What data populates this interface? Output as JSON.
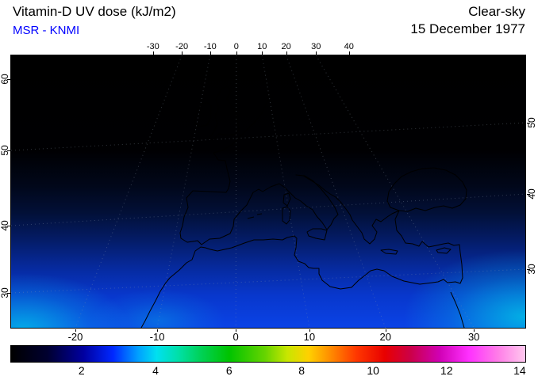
{
  "header": {
    "title": "Vitamin-D UV dose (kJ/m2)",
    "source": "MSR - KNMI",
    "condition": "Clear-sky",
    "date": "15 December 1977"
  },
  "colors": {
    "title_text": "#000000",
    "source_text": "#0000ff",
    "frame": "#000000",
    "page_background": "#ffffff"
  },
  "chart_data": {
    "type": "heatmap",
    "title": "Vitamin-D UV dose (kJ/m2)",
    "condition": "Clear-sky",
    "date": "15 December 1977",
    "source": "MSR - KNMI",
    "units": "kJ/m2",
    "region": "Europe / Mediterranean / North Africa",
    "projection": "oblique satellite-style view, meridians converge toward the top",
    "grid": "dotted graticule, faintly visible over the brighter southern part",
    "axes": {
      "top": {
        "ticks": [
          {
            "label": "-30",
            "f": 0.276
          },
          {
            "label": "-20",
            "f": 0.332
          },
          {
            "label": "-10",
            "f": 0.387
          },
          {
            "label": "0",
            "f": 0.438
          },
          {
            "label": "10",
            "f": 0.488
          },
          {
            "label": "20",
            "f": 0.535
          },
          {
            "label": "30",
            "f": 0.593
          },
          {
            "label": "40",
            "f": 0.657
          }
        ]
      },
      "bottom": {
        "ticks": [
          {
            "label": "-20",
            "f": 0.125
          },
          {
            "label": "-10",
            "f": 0.284
          },
          {
            "label": "0",
            "f": 0.437
          },
          {
            "label": "10",
            "f": 0.58
          },
          {
            "label": "20",
            "f": 0.728
          },
          {
            "label": "30",
            "f": 0.9
          }
        ]
      },
      "left": {
        "ticks": [
          {
            "label": "60",
            "f": 0.087
          },
          {
            "label": "50",
            "f": 0.349
          },
          {
            "label": "40",
            "f": 0.625
          },
          {
            "label": "30",
            "f": 0.872
          }
        ]
      },
      "right": {
        "ticks": [
          {
            "label": "50",
            "f": 0.247
          },
          {
            "label": "40",
            "f": 0.509
          },
          {
            "label": "30",
            "f": 0.785
          }
        ]
      }
    },
    "colorbar": {
      "min": 0,
      "max": 14.2,
      "tick_labels": [
        {
          "label": "2",
          "f": 0.137
        },
        {
          "label": "4",
          "f": 0.281
        },
        {
          "label": "6",
          "f": 0.424
        },
        {
          "label": "8",
          "f": 0.565
        },
        {
          "label": "10",
          "f": 0.704
        },
        {
          "label": "12",
          "f": 0.847
        },
        {
          "label": "14",
          "f": 0.989
        }
      ],
      "gradient": [
        {
          "f": 0.0,
          "c": "#000000"
        },
        {
          "f": 0.071,
          "c": "#000030"
        },
        {
          "f": 0.141,
          "c": "#0000a0"
        },
        {
          "f": 0.198,
          "c": "#0028ff"
        },
        {
          "f": 0.247,
          "c": "#00a0ff"
        },
        {
          "f": 0.283,
          "c": "#00e0f0"
        },
        {
          "f": 0.325,
          "c": "#00e0a8"
        },
        {
          "f": 0.367,
          "c": "#00d25a"
        },
        {
          "f": 0.424,
          "c": "#00c300"
        },
        {
          "f": 0.494,
          "c": "#66d400"
        },
        {
          "f": 0.537,
          "c": "#c8e600"
        },
        {
          "f": 0.579,
          "c": "#ffd000"
        },
        {
          "f": 0.621,
          "c": "#ff8c00"
        },
        {
          "f": 0.671,
          "c": "#ff3800"
        },
        {
          "f": 0.727,
          "c": "#e80000"
        },
        {
          "f": 0.777,
          "c": "#cc0048"
        },
        {
          "f": 0.833,
          "c": "#d000b4"
        },
        {
          "f": 0.89,
          "c": "#ff30ff"
        },
        {
          "f": 0.946,
          "c": "#ff7ce8"
        },
        {
          "f": 1.0,
          "c": "#ffc8ee"
        }
      ]
    },
    "field": {
      "description": "Clear-sky vitamin-D weighted UV dose: near 0 kJ/m2 (black) north of ~50N, increasing southward to ~3-4 kJ/m2 (blue to cyan) at the southern edge of the map; brightest cyan patches in the bottom-left Atlantic corner and bottom-right corner",
      "latitude_profile": [
        {
          "lat": 60,
          "value": 0.05
        },
        {
          "lat": 55,
          "value": 0.2
        },
        {
          "lat": 50,
          "value": 0.5
        },
        {
          "lat": 45,
          "value": 0.9
        },
        {
          "lat": 40,
          "value": 1.5
        },
        {
          "lat": 35,
          "value": 2.3
        },
        {
          "lat": 30,
          "value": 3.2
        },
        {
          "lat": 27,
          "value": 4.0
        }
      ],
      "background_gradient": [
        {
          "f": 0,
          "c": "#000000"
        },
        {
          "f": 0.35,
          "c": "#000002"
        },
        {
          "f": 0.48,
          "c": "#01071a"
        },
        {
          "f": 0.58,
          "c": "#021038"
        },
        {
          "f": 0.68,
          "c": "#041c68"
        },
        {
          "f": 0.78,
          "c": "#062a9e"
        },
        {
          "f": 0.88,
          "c": "#0837cc"
        },
        {
          "f": 1,
          "c": "#0b43e6"
        }
      ],
      "bright_region_color": "#00d8e8"
    }
  }
}
